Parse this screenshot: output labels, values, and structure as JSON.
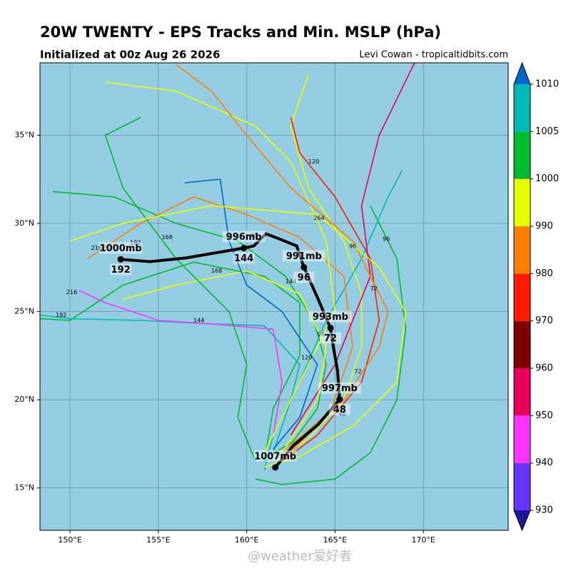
{
  "chart_data": {
    "type": "track-map",
    "title": "20W TWENTY - EPS Tracks and Min. MSLP (hPa)",
    "subtitle": "Initialized at 00z Aug 26 2026",
    "credit": "Levi Cowan - tropicaltidbits.com",
    "watermark": "@weather爱好者",
    "ocean_color": "#94cce2",
    "grid": true,
    "xlim": [
      148.3,
      174.8
    ],
    "ylim": [
      12.6,
      39.1
    ],
    "xticks": [
      {
        "value": 150,
        "label": "150°E"
      },
      {
        "value": 155,
        "label": "155°E"
      },
      {
        "value": 160,
        "label": "160°E"
      },
      {
        "value": 165,
        "label": "165°E"
      },
      {
        "value": 170,
        "label": "170°E"
      }
    ],
    "yticks": [
      {
        "value": 15,
        "label": "15°N"
      },
      {
        "value": 20,
        "label": "20°N"
      },
      {
        "value": 25,
        "label": "25°N"
      },
      {
        "value": 30,
        "label": "30°N"
      },
      {
        "value": 35,
        "label": "35°N"
      }
    ],
    "series": [
      {
        "color": "#00bb2d",
        "lon": [
          161.2,
          162.6,
          164,
          164.5,
          163.8,
          162.2,
          159.5,
          156,
          152.5,
          149
        ],
        "lat": [
          16.8,
          17.6,
          19.5,
          22,
          24.5,
          27,
          29,
          30,
          31.5,
          31.8
        ]
      },
      {
        "color": "#e6ff00",
        "lon": [
          161.8,
          163.5,
          165.5,
          166.5,
          166.5,
          165.5,
          163.5,
          162.5,
          163.5
        ],
        "lat": [
          16.6,
          17.8,
          20,
          23,
          26,
          29,
          32,
          35.5,
          38.5
        ]
      },
      {
        "color": "#ff1a00",
        "lon": [
          162,
          164,
          166.5,
          167.5,
          167,
          165,
          163,
          162.5
        ],
        "lat": [
          16.5,
          18,
          21,
          24.5,
          28,
          31.5,
          34,
          36
        ]
      },
      {
        "color": "#00b8b8",
        "lon": [
          161,
          161.5,
          163,
          164.5,
          166.5,
          168,
          168.8
        ],
        "lat": [
          16,
          18,
          21,
          24.5,
          28,
          31.5,
          33
        ]
      },
      {
        "color": "#ff7f00",
        "lon": [
          162.5,
          164.8,
          166,
          165.5,
          163,
          160,
          157,
          154,
          151
        ],
        "lat": [
          17,
          19.5,
          23,
          27,
          29.2,
          30.5,
          31.5,
          30,
          28
        ]
      },
      {
        "color": "#00bb2d",
        "lon": [
          161,
          161.5,
          163,
          163,
          161,
          157,
          153,
          150,
          148.3
        ],
        "lat": [
          16.5,
          19.5,
          22.5,
          25.5,
          27,
          27.8,
          26.5,
          24.5,
          24.6
        ]
      },
      {
        "color": "#e6ff00",
        "lon": [
          162,
          164,
          164.5,
          163,
          160,
          156,
          153
        ],
        "lat": [
          17,
          20,
          23,
          26,
          27.3,
          26.5,
          25.7
        ]
      },
      {
        "color": "#00b8b8",
        "lon": [
          161.5,
          162.5,
          163,
          161,
          158,
          154,
          150,
          148.3
        ],
        "lat": [
          17,
          20,
          22,
          24.2,
          24.3,
          24.5,
          24.6,
          24.8
        ]
      },
      {
        "color": "#ff33ff",
        "lon": [
          161.5,
          162,
          161.5,
          158,
          155,
          152,
          150.5
        ],
        "lat": [
          18,
          21,
          24,
          24.3,
          24.5,
          25.5,
          26.2
        ]
      },
      {
        "color": "#e6005c",
        "lon": [
          162.5,
          165,
          167,
          166.5,
          167.5,
          169.5
        ],
        "lat": [
          18,
          22,
          27,
          31,
          35,
          39.1
        ]
      },
      {
        "color": "#e6ff00",
        "lon": [
          161,
          163,
          165,
          164.5,
          162.5,
          160.5,
          156,
          152
        ],
        "lat": [
          17,
          21,
          25,
          29,
          33.5,
          35.5,
          37.5,
          38
        ]
      },
      {
        "color": "#00bb2d",
        "lon": [
          160.5,
          162,
          165,
          167,
          168.5,
          169,
          168.5,
          167
        ],
        "lat": [
          15.5,
          15.2,
          15.5,
          17,
          20,
          24,
          28,
          31
        ]
      },
      {
        "color": "#ff7f00",
        "lon": [
          162,
          165.5,
          167.5,
          168,
          166,
          162.5,
          160,
          158,
          156
        ],
        "lat": [
          17,
          20,
          23,
          25,
          29,
          32,
          35,
          37.5,
          39
        ]
      },
      {
        "color": "#0066cc",
        "lon": [
          161.5,
          163,
          164,
          162,
          160,
          159,
          158.5,
          156.5
        ],
        "lat": [
          17.2,
          19,
          22,
          25,
          26.5,
          29,
          32.5,
          32.3
        ]
      },
      {
        "color": "#00bb2d",
        "lon": [
          160.5,
          159.5,
          160,
          159,
          156,
          153,
          152,
          154
        ],
        "lat": [
          16.5,
          19,
          22,
          25,
          28,
          32,
          35,
          36
        ]
      },
      {
        "color": "#e6ff00",
        "lon": [
          161,
          163,
          166,
          168.5,
          169,
          167.5,
          164,
          158,
          153,
          150
        ],
        "lat": [
          16.2,
          16.8,
          18.5,
          21,
          25,
          27.5,
          30.5,
          31,
          30,
          29
        ]
      }
    ],
    "hour_labels": {
      "lon": [
        165.4,
        166.3,
        164.2,
        167.2,
        163.4,
        162.5,
        166,
        160.4,
        158.3,
        155.5,
        151.5,
        149.5,
        164.1,
        167.9,
        163.8,
        157.3,
        153.7,
        150.1
      ],
      "lat": [
        19.2,
        21.6,
        23.7,
        26.3,
        22.4,
        26.7,
        28.7,
        29.3,
        27.3,
        29.2,
        28.6,
        24.8,
        30.3,
        29.1,
        33.5,
        24.5,
        28.9,
        26.1
      ],
      "hours": [
        48,
        72,
        96,
        72,
        120,
        144,
        96,
        96,
        168,
        168,
        216,
        192,
        264,
        96,
        120,
        144,
        192,
        216
      ]
    },
    "mean": {
      "lon": [
        161.62,
        162.63,
        164.05,
        165.26,
        165.14,
        164.86,
        164.74,
        164.05,
        163.24,
        162.83,
        161.82,
        161.09,
        160.4,
        159.84,
        156.56,
        154.53,
        152.87
      ],
      "lat": [
        16.17,
        17.39,
        18.6,
        20.02,
        21.64,
        23.26,
        24.07,
        25.69,
        27.51,
        28.72,
        29.13,
        29.41,
        28.72,
        28.6,
        28.04,
        27.83,
        27.96
      ]
    },
    "mean_points": {
      "lon": [
        161.62,
        165.26,
        164.74,
        163.24,
        159.84,
        152.87
      ],
      "lat": [
        16.17,
        20.02,
        24.07,
        27.51,
        28.6,
        27.96
      ],
      "pressure": [
        1007,
        997,
        993,
        991,
        996,
        1000
      ],
      "pressure_labels": [
        "1007mb",
        "997mb",
        "993mb",
        "991mb",
        "996mb",
        "1000mb"
      ],
      "hours": [
        null,
        48,
        72,
        96,
        144,
        192
      ]
    },
    "colorbar": {
      "ticks": [
        930,
        940,
        950,
        960,
        970,
        980,
        990,
        1000,
        1005,
        1010
      ],
      "colors": [
        "#1a1a99",
        "#6633ff",
        "#ff33ff",
        "#e6005c",
        "#800000",
        "#ff1a00",
        "#ff7f00",
        "#e6ff00",
        "#00bb2d",
        "#00b8b8",
        "#0066cc"
      ]
    }
  }
}
